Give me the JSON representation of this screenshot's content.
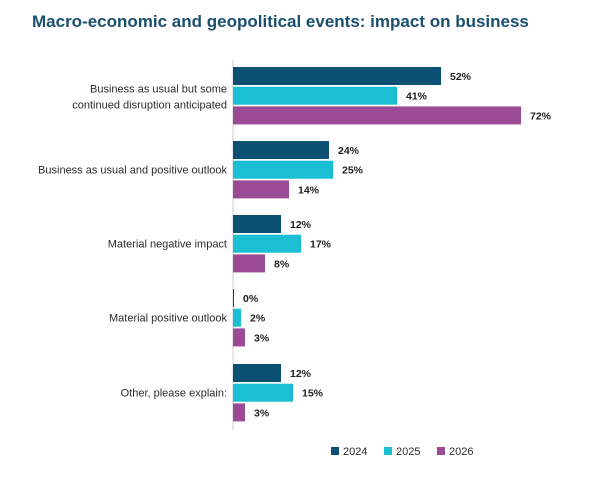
{
  "chart_data": {
    "type": "bar",
    "orientation": "horizontal",
    "title": "Macro-economic and geopolitical events: impact on business",
    "xlabel": "",
    "ylabel": "",
    "xlim": [
      0,
      72
    ],
    "grid": false,
    "legend_position": "bottom-right",
    "categories": [
      "Business as usual but some continued disruption anticipated",
      "Business as usual and positive outlook",
      "Material negative impact",
      "Material positive outlook",
      "Other, please explain:"
    ],
    "series": [
      {
        "name": "2024",
        "color": "#0b4f73",
        "values": [
          52,
          24,
          12,
          0,
          12
        ],
        "labels": [
          "52%",
          "24%",
          "12%",
          "0%",
          "12%"
        ]
      },
      {
        "name": "2025",
        "color": "#1bbfd4",
        "values": [
          41,
          25,
          17,
          2,
          15
        ],
        "labels": [
          "41%",
          "25%",
          "17%",
          "2%",
          "15%"
        ]
      },
      {
        "name": "2026",
        "color": "#9b4a96",
        "values": [
          72,
          14,
          8,
          3,
          3
        ],
        "labels": [
          "72%",
          "14%",
          "8%",
          "3%",
          "3%"
        ]
      }
    ]
  }
}
